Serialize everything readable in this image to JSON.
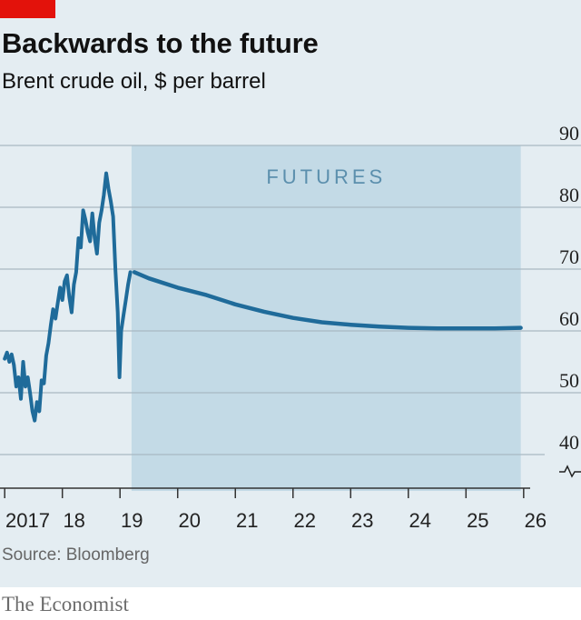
{
  "header": {
    "title": "Backwards to the future",
    "subtitle": "Brent crude oil, $ per barrel"
  },
  "footer": {
    "source": "Source: Bloomberg",
    "brand": "The Economist"
  },
  "colors": {
    "line": "#1f6b9a",
    "panel": "#e4edf2",
    "futures_band": "#c3dae6",
    "gridline": "#a9b9c3",
    "accent": "#e3120b"
  },
  "chart_data": {
    "type": "line",
    "title": "Backwards to the future",
    "subtitle": "Brent crude oil, $ per barrel",
    "ylabel": "$ per barrel",
    "ylim": [
      40,
      90
    ],
    "yticks": [
      40,
      50,
      60,
      70,
      80,
      90
    ],
    "y_axis_break": true,
    "y_axis_position": "right",
    "xlim": [
      2016.95,
      2026.05
    ],
    "x_tick_positions": [
      2017,
      2018,
      2019,
      2020,
      2021,
      2022,
      2023,
      2024,
      2025,
      2026
    ],
    "x_tick_labels": [
      "2017",
      "18",
      "19",
      "20",
      "21",
      "22",
      "23",
      "24",
      "25",
      "26"
    ],
    "grid": true,
    "futures_band": {
      "label": "FUTURES",
      "start": 2019.2,
      "end": 2025.95
    },
    "series": [
      {
        "x": [
          2017.0,
          2017.04,
          2017.08,
          2017.12,
          2017.16,
          2017.2,
          2017.24,
          2017.28,
          2017.32,
          2017.36,
          2017.4,
          2017.44,
          2017.48,
          2017.52,
          2017.56,
          2017.6,
          2017.64,
          2017.68,
          2017.72,
          2017.76,
          2017.8,
          2017.84,
          2017.88,
          2017.92,
          2017.96,
          2018.0,
          2018.04,
          2018.08,
          2018.12,
          2018.16,
          2018.2,
          2018.24,
          2018.28,
          2018.32,
          2018.36,
          2018.4,
          2018.44,
          2018.48,
          2018.52,
          2018.56,
          2018.6,
          2018.64,
          2018.68,
          2018.72,
          2018.76,
          2018.8,
          2018.84,
          2018.88,
          2018.92,
          2018.96,
          2018.99,
          2019.02,
          2019.06,
          2019.1,
          2019.14,
          2019.18
        ],
        "values": [
          55.5,
          56.5,
          55.0,
          56.2,
          54.5,
          51.0,
          52.5,
          49.0,
          55.0,
          51.0,
          52.5,
          50.0,
          47.0,
          45.5,
          48.5,
          47.0,
          52.0,
          51.5,
          56.0,
          58.0,
          61.0,
          63.5,
          62.0,
          64.5,
          67.0,
          65.0,
          68.0,
          69.0,
          65.5,
          63.0,
          67.5,
          69.5,
          75.0,
          73.5,
          79.5,
          78.0,
          76.0,
          74.5,
          79.0,
          75.0,
          72.5,
          77.5,
          79.5,
          82.0,
          85.5,
          83.0,
          81.0,
          78.5,
          70.0,
          63.0,
          52.5,
          60.0,
          62.5,
          65.0,
          67.5,
          69.5
        ]
      },
      {
        "name": "Futures",
        "x": [
          2019.25,
          2019.5,
          2020.0,
          2020.5,
          2021.0,
          2021.5,
          2022.0,
          2022.5,
          2023.0,
          2023.5,
          2024.0,
          2024.5,
          2025.0,
          2025.5,
          2025.95
        ],
        "values": [
          69.5,
          68.5,
          67.0,
          65.8,
          64.3,
          63.1,
          62.1,
          61.4,
          61.0,
          60.7,
          60.5,
          60.4,
          60.4,
          60.4,
          60.5
        ]
      }
    ]
  }
}
